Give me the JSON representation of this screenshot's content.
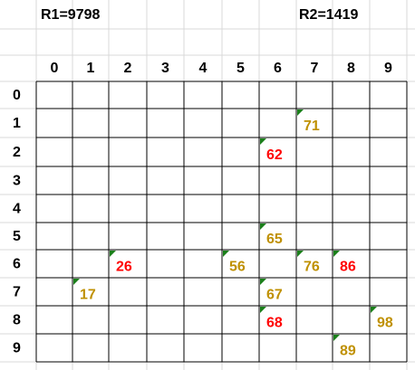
{
  "header": {
    "r1": "R1=9798",
    "r2": "R2=1419"
  },
  "table": {
    "columns": [
      "0",
      "1",
      "2",
      "3",
      "4",
      "5",
      "6",
      "7",
      "8",
      "9"
    ],
    "rows": [
      {
        "label": "0",
        "cells": [
          null,
          null,
          null,
          null,
          null,
          null,
          null,
          null,
          null,
          null
        ]
      },
      {
        "label": "1",
        "cells": [
          null,
          null,
          null,
          null,
          null,
          null,
          null,
          {
            "text": "71",
            "color": "#bf9000"
          },
          null,
          null
        ]
      },
      {
        "label": "2",
        "cells": [
          null,
          null,
          null,
          null,
          null,
          null,
          {
            "text": "62",
            "color": "#ff0000"
          },
          null,
          null,
          null
        ]
      },
      {
        "label": "3",
        "cells": [
          null,
          null,
          null,
          null,
          null,
          null,
          null,
          null,
          null,
          null
        ]
      },
      {
        "label": "4",
        "cells": [
          null,
          null,
          null,
          null,
          null,
          null,
          null,
          null,
          null,
          null
        ]
      },
      {
        "label": "5",
        "cells": [
          null,
          null,
          null,
          null,
          null,
          null,
          {
            "text": "65",
            "color": "#bf9000"
          },
          null,
          null,
          null
        ]
      },
      {
        "label": "6",
        "cells": [
          null,
          null,
          {
            "text": "26",
            "color": "#ff0000"
          },
          null,
          null,
          {
            "text": "56",
            "color": "#bf9000"
          },
          null,
          {
            "text": "76",
            "color": "#bf9000"
          },
          {
            "text": "86",
            "color": "#ff0000"
          },
          null
        ]
      },
      {
        "label": "7",
        "cells": [
          null,
          {
            "text": "17",
            "color": "#bf9000"
          },
          null,
          null,
          null,
          null,
          {
            "text": "67",
            "color": "#bf9000"
          },
          null,
          null,
          null
        ]
      },
      {
        "label": "8",
        "cells": [
          null,
          null,
          null,
          null,
          null,
          null,
          {
            "text": "68",
            "color": "#ff0000"
          },
          null,
          null,
          {
            "text": "98",
            "color": "#bf9000"
          }
        ]
      },
      {
        "label": "9",
        "cells": [
          null,
          null,
          null,
          null,
          null,
          null,
          null,
          null,
          {
            "text": "89",
            "color": "#bf9000"
          },
          null
        ]
      }
    ]
  }
}
